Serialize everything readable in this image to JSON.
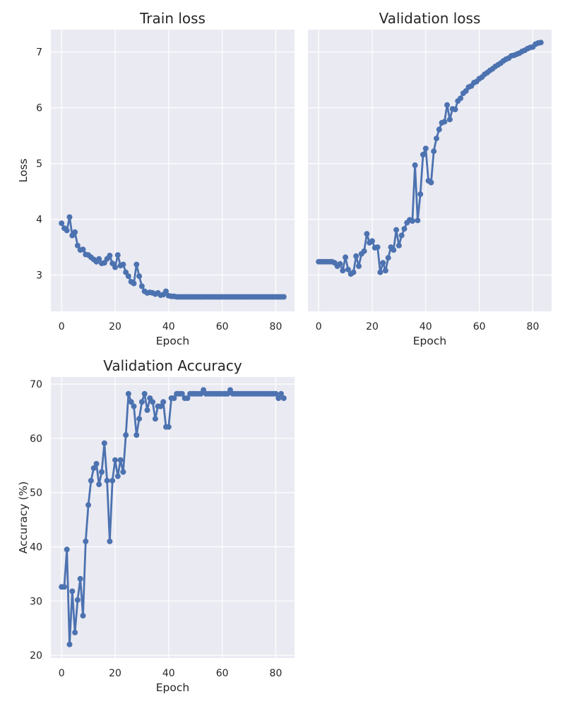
{
  "chart_data": [
    {
      "type": "line",
      "title": "Train loss",
      "xlabel": "Epoch",
      "ylabel": "Loss",
      "xlim": [
        -4,
        87
      ],
      "ylim": [
        2.35,
        7.4
      ],
      "xticks": [
        0,
        20,
        40,
        60,
        80
      ],
      "yticks": [
        3,
        4,
        5,
        6,
        7
      ],
      "show_ytick_labels": true,
      "grid": true,
      "color": "#4c72b0",
      "x": [
        0,
        1,
        2,
        3,
        4,
        5,
        6,
        7,
        8,
        9,
        10,
        11,
        12,
        13,
        14,
        15,
        16,
        17,
        18,
        19,
        20,
        21,
        22,
        23,
        24,
        25,
        26,
        27,
        28,
        29,
        30,
        31,
        32,
        33,
        34,
        35,
        36,
        37,
        38,
        39,
        40,
        41,
        42,
        43,
        44,
        45,
        46,
        47,
        48,
        49,
        50,
        51,
        52,
        53,
        54,
        55,
        56,
        57,
        58,
        59,
        60,
        61,
        62,
        63,
        64,
        65,
        66,
        67,
        68,
        69,
        70,
        71,
        72,
        73,
        74,
        75,
        76,
        77,
        78,
        79,
        80,
        81,
        82,
        83
      ],
      "y": [
        3.93,
        3.84,
        3.8,
        4.04,
        3.71,
        3.77,
        3.53,
        3.45,
        3.46,
        3.37,
        3.36,
        3.32,
        3.28,
        3.24,
        3.29,
        3.21,
        3.22,
        3.29,
        3.35,
        3.21,
        3.14,
        3.36,
        3.17,
        3.19,
        3.05,
        2.98,
        2.88,
        2.85,
        3.19,
        2.98,
        2.8,
        2.71,
        2.68,
        2.69,
        2.68,
        2.66,
        2.68,
        2.64,
        2.65,
        2.71,
        2.63,
        2.62,
        2.62,
        2.61,
        2.61,
        2.61,
        2.61,
        2.61,
        2.61,
        2.61,
        2.61,
        2.61,
        2.61,
        2.61,
        2.61,
        2.61,
        2.61,
        2.61,
        2.61,
        2.61,
        2.61,
        2.61,
        2.61,
        2.61,
        2.61,
        2.61,
        2.61,
        2.61,
        2.61,
        2.61,
        2.61,
        2.61,
        2.61,
        2.61,
        2.61,
        2.61,
        2.61,
        2.61,
        2.61,
        2.61,
        2.61,
        2.61,
        2.61,
        2.61
      ]
    },
    {
      "type": "line",
      "title": "Validation loss",
      "xlabel": "Epoch",
      "ylabel": "",
      "xlim": [
        -4,
        87
      ],
      "ylim": [
        2.35,
        7.4
      ],
      "xticks": [
        0,
        20,
        40,
        60,
        80
      ],
      "yticks": [
        3,
        4,
        5,
        6,
        7
      ],
      "show_ytick_labels": false,
      "grid": true,
      "color": "#4c72b0",
      "x": [
        0,
        1,
        2,
        3,
        4,
        5,
        6,
        7,
        8,
        9,
        10,
        11,
        12,
        13,
        14,
        15,
        16,
        17,
        18,
        19,
        20,
        21,
        22,
        23,
        24,
        25,
        26,
        27,
        28,
        29,
        30,
        31,
        32,
        33,
        34,
        35,
        36,
        37,
        38,
        39,
        40,
        41,
        42,
        43,
        44,
        45,
        46,
        47,
        48,
        49,
        50,
        51,
        52,
        53,
        54,
        55,
        56,
        57,
        58,
        59,
        60,
        61,
        62,
        63,
        64,
        65,
        66,
        67,
        68,
        69,
        70,
        71,
        72,
        73,
        74,
        75,
        76,
        77,
        78,
        79,
        80,
        81,
        82,
        83
      ],
      "y": [
        3.24,
        3.24,
        3.24,
        3.24,
        3.24,
        3.24,
        3.22,
        3.16,
        3.2,
        3.08,
        3.32,
        3.1,
        3.02,
        3.05,
        3.34,
        3.16,
        3.38,
        3.43,
        3.74,
        3.58,
        3.61,
        3.49,
        3.5,
        3.05,
        3.22,
        3.08,
        3.31,
        3.5,
        3.45,
        3.81,
        3.53,
        3.71,
        3.83,
        3.94,
        3.99,
        3.97,
        4.97,
        3.98,
        4.45,
        5.16,
        5.27,
        4.69,
        4.66,
        5.22,
        5.45,
        5.61,
        5.73,
        5.75,
        6.05,
        5.79,
        5.98,
        5.97,
        6.12,
        6.17,
        6.26,
        6.3,
        6.37,
        6.39,
        6.45,
        6.47,
        6.52,
        6.55,
        6.6,
        6.63,
        6.67,
        6.7,
        6.74,
        6.77,
        6.8,
        6.84,
        6.87,
        6.89,
        6.93,
        6.94,
        6.96,
        6.98,
        7.01,
        7.03,
        7.06,
        7.08,
        7.09,
        7.14,
        7.16,
        7.17
      ]
    },
    {
      "type": "line",
      "title": "Validation Accuracy",
      "xlabel": "Epoch",
      "ylabel": "Accuracy (%)",
      "xlim": [
        -4,
        87
      ],
      "ylim": [
        19.5,
        71.3
      ],
      "xticks": [
        0,
        20,
        40,
        60,
        80
      ],
      "yticks": [
        20,
        30,
        40,
        50,
        60,
        70
      ],
      "show_ytick_labels": true,
      "grid": true,
      "color": "#4c72b0",
      "x": [
        0,
        1,
        2,
        3,
        4,
        5,
        6,
        7,
        8,
        9,
        10,
        11,
        12,
        13,
        14,
        15,
        16,
        17,
        18,
        19,
        20,
        21,
        22,
        23,
        24,
        25,
        26,
        27,
        28,
        29,
        30,
        31,
        32,
        33,
        34,
        35,
        36,
        37,
        38,
        39,
        40,
        41,
        42,
        43,
        44,
        45,
        46,
        47,
        48,
        49,
        50,
        51,
        52,
        53,
        54,
        55,
        56,
        57,
        58,
        59,
        60,
        61,
        62,
        63,
        64,
        65,
        66,
        67,
        68,
        69,
        70,
        71,
        72,
        73,
        74,
        75,
        76,
        77,
        78,
        79,
        80,
        81,
        82,
        83
      ],
      "y": [
        32.6,
        32.6,
        39.5,
        22.0,
        31.8,
        24.2,
        30.2,
        34.1,
        27.3,
        41.0,
        47.7,
        52.2,
        54.5,
        55.3,
        51.5,
        53.8,
        59.1,
        52.2,
        41.0,
        52.2,
        56.0,
        53.0,
        56.0,
        53.8,
        60.6,
        68.2,
        66.7,
        65.9,
        60.6,
        63.6,
        66.7,
        68.2,
        65.2,
        67.4,
        66.7,
        63.6,
        65.9,
        65.9,
        66.7,
        62.1,
        62.1,
        67.4,
        67.4,
        68.2,
        68.2,
        68.2,
        67.4,
        67.4,
        68.2,
        68.2,
        68.2,
        68.2,
        68.2,
        68.9,
        68.2,
        68.2,
        68.2,
        68.2,
        68.2,
        68.2,
        68.2,
        68.2,
        68.2,
        68.9,
        68.2,
        68.2,
        68.2,
        68.2,
        68.2,
        68.2,
        68.2,
        68.2,
        68.2,
        68.2,
        68.2,
        68.2,
        68.2,
        68.2,
        68.2,
        68.2,
        68.2,
        67.4,
        68.2,
        67.4
      ]
    }
  ]
}
